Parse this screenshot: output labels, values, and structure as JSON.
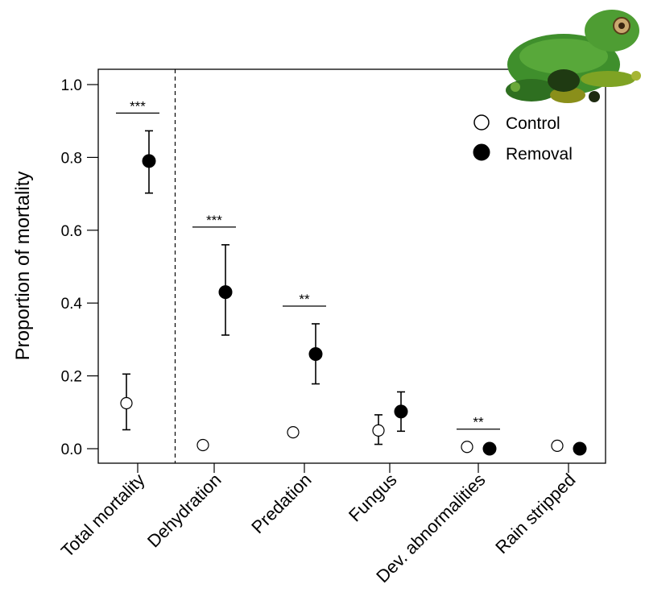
{
  "chart_data": {
    "type": "scatter",
    "xlabel": "",
    "ylabel": "Proportion of mortality",
    "ylim": [
      0,
      1.0
    ],
    "yticks": [
      "0.0",
      "0.2",
      "0.4",
      "0.6",
      "0.8",
      "1.0"
    ],
    "categories": [
      "Total mortality",
      "Dehydration",
      "Predation",
      "Fungus",
      "Dev. abnormalities",
      "Rain stripped"
    ],
    "series": [
      {
        "name": "Control",
        "marker": "open-circle",
        "values": [
          0.125,
          0.01,
          0.045,
          0.05,
          0.005,
          0.008
        ],
        "error_low": [
          0.052,
          null,
          null,
          0.012,
          null,
          null
        ],
        "error_high": [
          0.205,
          null,
          null,
          0.093,
          null,
          null
        ]
      },
      {
        "name": "Removal",
        "marker": "filled-circle",
        "values": [
          0.79,
          0.43,
          0.26,
          0.102,
          0.0,
          0.0
        ],
        "error_low": [
          0.702,
          0.312,
          0.178,
          0.048,
          null,
          null
        ],
        "error_high": [
          0.873,
          0.56,
          0.343,
          0.156,
          null,
          null
        ]
      }
    ],
    "significance": [
      "***",
      "***",
      "**",
      "",
      "**",
      ""
    ],
    "separator_after_category": "Total mortality",
    "legend_position": "top-right",
    "colors": {
      "control_fill": "#ffffff",
      "removal_fill": "#000000",
      "frog_green": "#3a8a2a"
    },
    "decoration_icon": "tree-frog-image"
  }
}
